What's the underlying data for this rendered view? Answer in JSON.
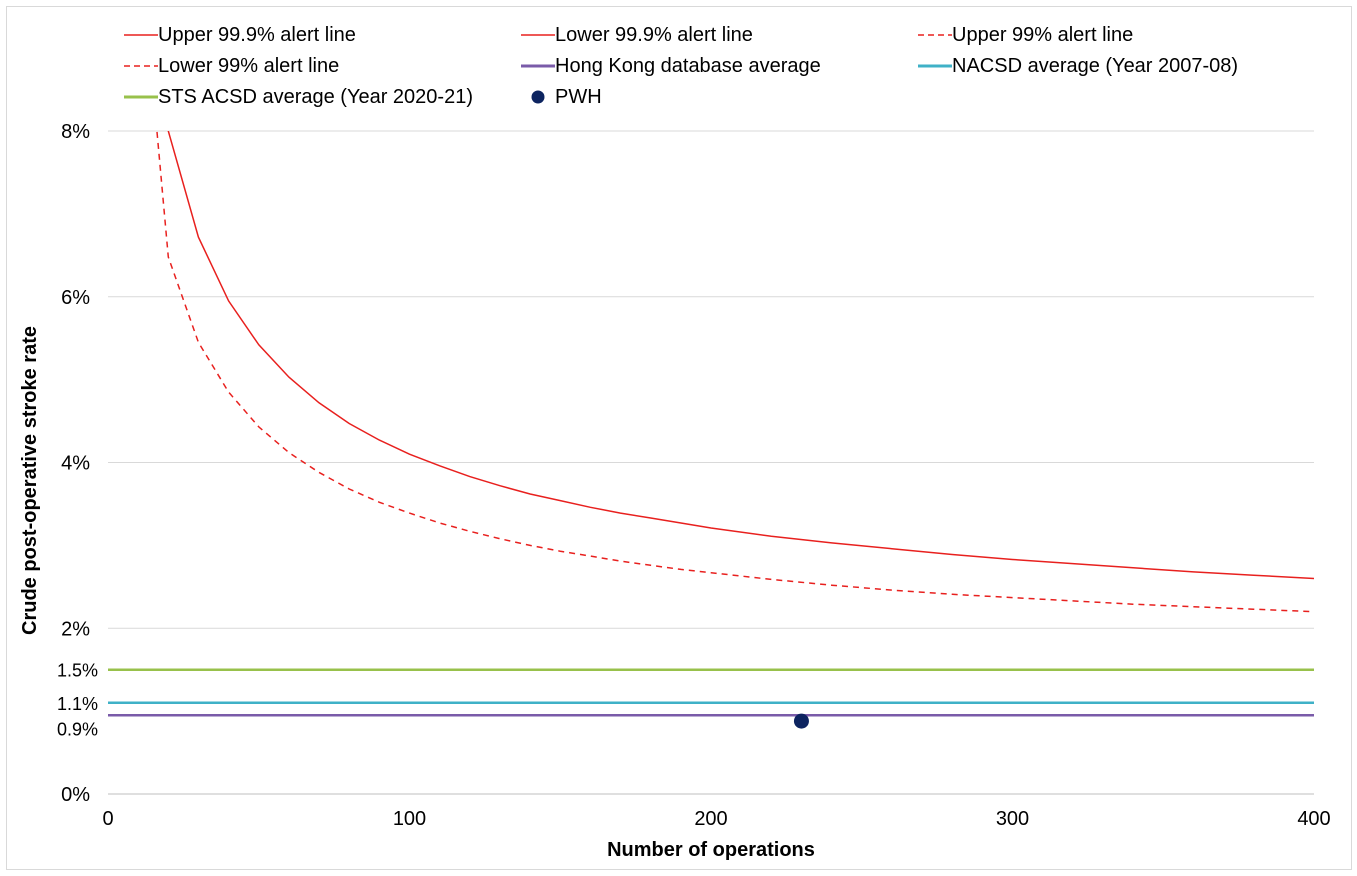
{
  "chart_data": {
    "type": "line",
    "title": "",
    "xlabel": "Number of operations",
    "ylabel": "Crude post-operative stroke rate",
    "xlim": [
      0,
      400
    ],
    "ylim": [
      0,
      8
    ],
    "x_ticks": [
      "0",
      "100",
      "200",
      "300",
      "400"
    ],
    "y_ticks": [
      {
        "value": 0,
        "label": "0%"
      },
      {
        "value": 0.9,
        "label": "0.9%"
      },
      {
        "value": 1.1,
        "label": "1.1%"
      },
      {
        "value": 1.5,
        "label": "1.5%"
      },
      {
        "value": 2,
        "label": "2%"
      },
      {
        "value": 4,
        "label": "4%"
      },
      {
        "value": 6,
        "label": "6%"
      },
      {
        "value": 8,
        "label": "8%"
      }
    ],
    "grid": true,
    "legend_position": "top",
    "series": [
      {
        "name": "Upper 99.9% alert line",
        "color": "#e8201e",
        "style": "solid",
        "x": [
          10,
          20,
          30,
          40,
          50,
          60,
          70,
          80,
          90,
          100,
          110,
          120,
          130,
          140,
          150,
          160,
          170,
          180,
          190,
          200,
          220,
          240,
          260,
          280,
          300,
          320,
          340,
          360,
          380,
          400
        ],
        "y": [
          12.5,
          8.0,
          6.72,
          5.95,
          5.42,
          5.03,
          4.72,
          4.47,
          4.27,
          4.1,
          3.96,
          3.83,
          3.72,
          3.62,
          3.54,
          3.46,
          3.39,
          3.33,
          3.27,
          3.21,
          3.11,
          3.03,
          2.96,
          2.89,
          2.83,
          2.78,
          2.73,
          2.68,
          2.64,
          2.6
        ]
      },
      {
        "name": "Lower 99.9% alert line",
        "color": "#e8201e",
        "style": "solid",
        "x": [],
        "y": []
      },
      {
        "name": "Upper 99% alert line",
        "color": "#e8201e",
        "style": "dashed",
        "x": [
          10,
          20,
          30,
          40,
          50,
          60,
          70,
          80,
          90,
          100,
          110,
          120,
          130,
          140,
          150,
          160,
          170,
          180,
          190,
          200,
          220,
          240,
          260,
          280,
          300,
          320,
          340,
          360,
          380,
          400
        ],
        "y": [
          10.5,
          6.48,
          5.45,
          4.85,
          4.43,
          4.12,
          3.88,
          3.68,
          3.52,
          3.39,
          3.27,
          3.17,
          3.08,
          3.0,
          2.93,
          2.87,
          2.81,
          2.76,
          2.71,
          2.67,
          2.59,
          2.52,
          2.46,
          2.41,
          2.37,
          2.33,
          2.29,
          2.26,
          2.23,
          2.2
        ]
      },
      {
        "name": "Lower 99% alert line",
        "color": "#e8201e",
        "style": "dashed",
        "x": [],
        "y": []
      },
      {
        "name": "Hong Kong database average",
        "color": "#7a5ba9",
        "style": "solid",
        "x": [
          0,
          400
        ],
        "y": [
          0.95,
          0.95
        ]
      },
      {
        "name": "NACSD average (Year 2007-08)",
        "color": "#3fb1c7",
        "style": "solid",
        "x": [
          0,
          400
        ],
        "y": [
          1.1,
          1.1
        ]
      },
      {
        "name": "STS ACSD average (Year 2020-21)",
        "color": "#98c14b",
        "style": "solid",
        "x": [
          0,
          400
        ],
        "y": [
          1.5,
          1.5
        ]
      },
      {
        "name": "PWH",
        "color": "#0d2460",
        "style": "marker",
        "x": [
          230
        ],
        "y": [
          0.88
        ]
      }
    ]
  }
}
